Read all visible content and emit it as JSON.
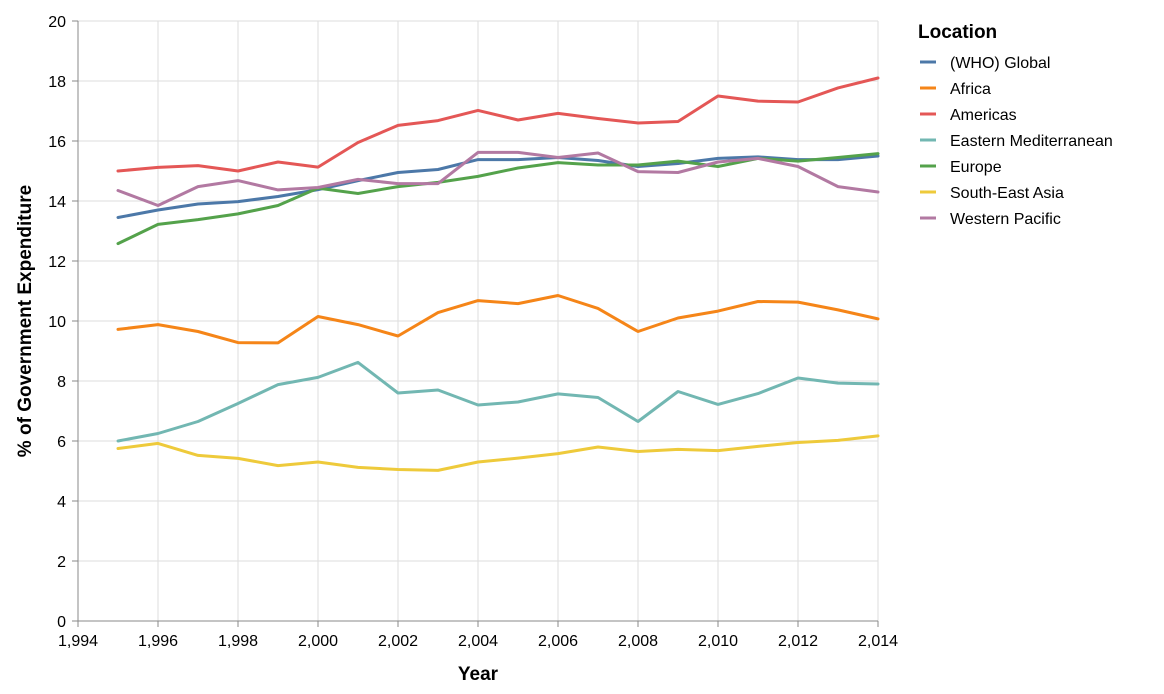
{
  "chart_data": {
    "type": "line",
    "xlabel": "Year",
    "ylabel": "% of Government Expenditure",
    "xlim": [
      1994,
      2014
    ],
    "ylim": [
      0,
      20
    ],
    "x_ticks": [
      "1,994",
      "1,996",
      "1,998",
      "2,000",
      "2,002",
      "2,004",
      "2,006",
      "2,008",
      "2,010",
      "2,012",
      "2,014"
    ],
    "y_ticks": [
      "0",
      "2",
      "4",
      "6",
      "8",
      "10",
      "12",
      "14",
      "16",
      "18",
      "20"
    ],
    "grid": true,
    "legend_title": "Location",
    "legend_position": "right",
    "x": [
      1995,
      1996,
      1997,
      1998,
      1999,
      2000,
      2001,
      2002,
      2003,
      2004,
      2005,
      2006,
      2007,
      2008,
      2009,
      2010,
      2011,
      2012,
      2013,
      2014
    ],
    "series": [
      {
        "name": "(WHO) Global",
        "color": "#4c78a8",
        "values": [
          13.45,
          13.7,
          13.9,
          13.98,
          14.15,
          14.38,
          14.68,
          14.95,
          15.05,
          15.38,
          15.38,
          15.45,
          15.35,
          15.15,
          15.25,
          15.42,
          15.47,
          15.38,
          15.38,
          15.5
        ]
      },
      {
        "name": "Africa",
        "color": "#f58518",
        "values": [
          9.72,
          9.88,
          9.65,
          9.28,
          9.27,
          10.15,
          9.88,
          9.5,
          10.28,
          10.68,
          10.58,
          10.85,
          10.42,
          9.65,
          10.1,
          10.33,
          10.65,
          10.63,
          10.37,
          10.07
        ]
      },
      {
        "name": "Americas",
        "color": "#e45756",
        "values": [
          15.0,
          15.12,
          15.18,
          15.0,
          15.3,
          15.13,
          15.95,
          16.52,
          16.68,
          17.02,
          16.7,
          16.92,
          16.75,
          16.6,
          16.65,
          17.5,
          17.33,
          17.3,
          17.77,
          18.1
        ]
      },
      {
        "name": "Eastern Mediterranean",
        "color": "#72b7b2",
        "values": [
          6.0,
          6.25,
          6.65,
          7.25,
          7.88,
          8.12,
          8.62,
          7.6,
          7.7,
          7.2,
          7.3,
          7.57,
          7.45,
          6.65,
          7.65,
          7.22,
          7.58,
          8.1,
          7.93,
          7.9
        ]
      },
      {
        "name": "Europe",
        "color": "#54a24b",
        "values": [
          12.58,
          13.22,
          13.38,
          13.57,
          13.85,
          14.43,
          14.25,
          14.48,
          14.62,
          14.82,
          15.1,
          15.28,
          15.2,
          15.2,
          15.33,
          15.15,
          15.42,
          15.33,
          15.45,
          15.58
        ]
      },
      {
        "name": "South-East Asia",
        "color": "#eeca3b",
        "values": [
          5.75,
          5.92,
          5.52,
          5.42,
          5.18,
          5.3,
          5.12,
          5.05,
          5.02,
          5.3,
          5.43,
          5.58,
          5.8,
          5.65,
          5.72,
          5.68,
          5.82,
          5.95,
          6.02,
          6.17
        ]
      },
      {
        "name": "Western Pacific",
        "color": "#b279a2",
        "values": [
          14.35,
          13.85,
          14.48,
          14.68,
          14.37,
          14.45,
          14.72,
          14.58,
          14.58,
          15.62,
          15.62,
          15.45,
          15.6,
          14.98,
          14.95,
          15.3,
          15.42,
          15.15,
          14.48,
          14.3
        ]
      }
    ]
  }
}
